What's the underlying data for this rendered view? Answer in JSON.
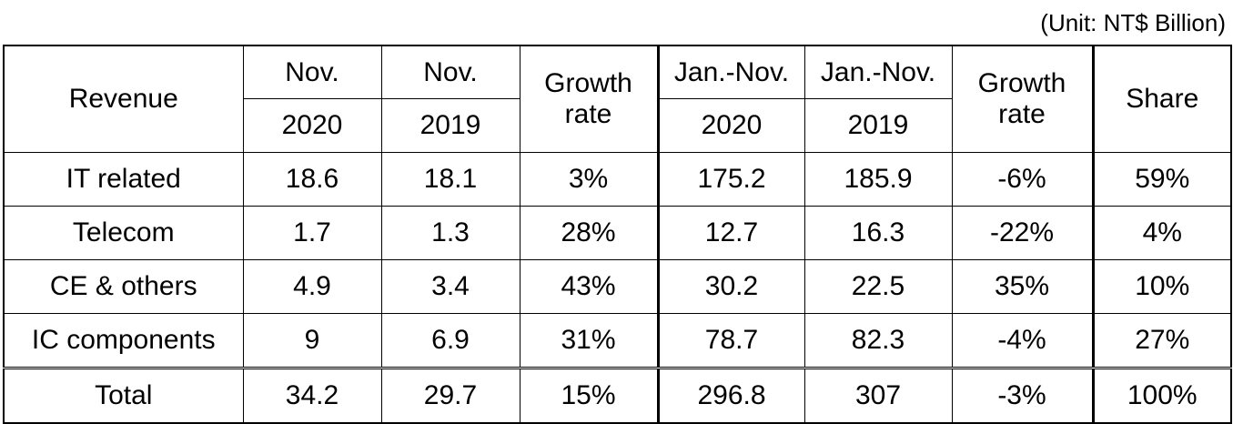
{
  "unit_note": "(Unit: NT$ Billion)",
  "chart_data": {
    "type": "table",
    "header_row1": {
      "revenue": "Revenue",
      "nov": "Nov.",
      "nov2": "Nov.",
      "growth_a": "Growth rate",
      "jan_nov": "Jan.-Nov.",
      "jan_nov2": "Jan.-Nov.",
      "growth_b": "Growth rate",
      "share": "Share"
    },
    "header_row2": {
      "y2020": "2020",
      "y2019": "2019",
      "y2020b": "2020",
      "y2019b": "2019"
    },
    "rows": [
      {
        "label": "IT related",
        "nov2020": "18.6",
        "nov2019": "18.1",
        "growth_nov": "3%",
        "ytd2020": "175.2",
        "ytd2019": "185.9",
        "growth_ytd": "-6%",
        "share": "59%"
      },
      {
        "label": "Telecom",
        "nov2020": "1.7",
        "nov2019": "1.3",
        "growth_nov": "28%",
        "ytd2020": "12.7",
        "ytd2019": "16.3",
        "growth_ytd": "-22%",
        "share": "4%"
      },
      {
        "label": "CE & others",
        "nov2020": "4.9",
        "nov2019": "3.4",
        "growth_nov": "43%",
        "ytd2020": "30.2",
        "ytd2019": "22.5",
        "growth_ytd": "35%",
        "share": "10%"
      },
      {
        "label": "IC components",
        "nov2020": "9",
        "nov2019": "6.9",
        "growth_nov": "31%",
        "ytd2020": "78.7",
        "ytd2019": "82.3",
        "growth_ytd": "-4%",
        "share": "27%"
      },
      {
        "label": "Total",
        "nov2020": "34.2",
        "nov2019": "29.7",
        "growth_nov": "15%",
        "ytd2020": "296.8",
        "ytd2019": "307",
        "growth_ytd": "-3%",
        "share": "100%"
      }
    ]
  }
}
